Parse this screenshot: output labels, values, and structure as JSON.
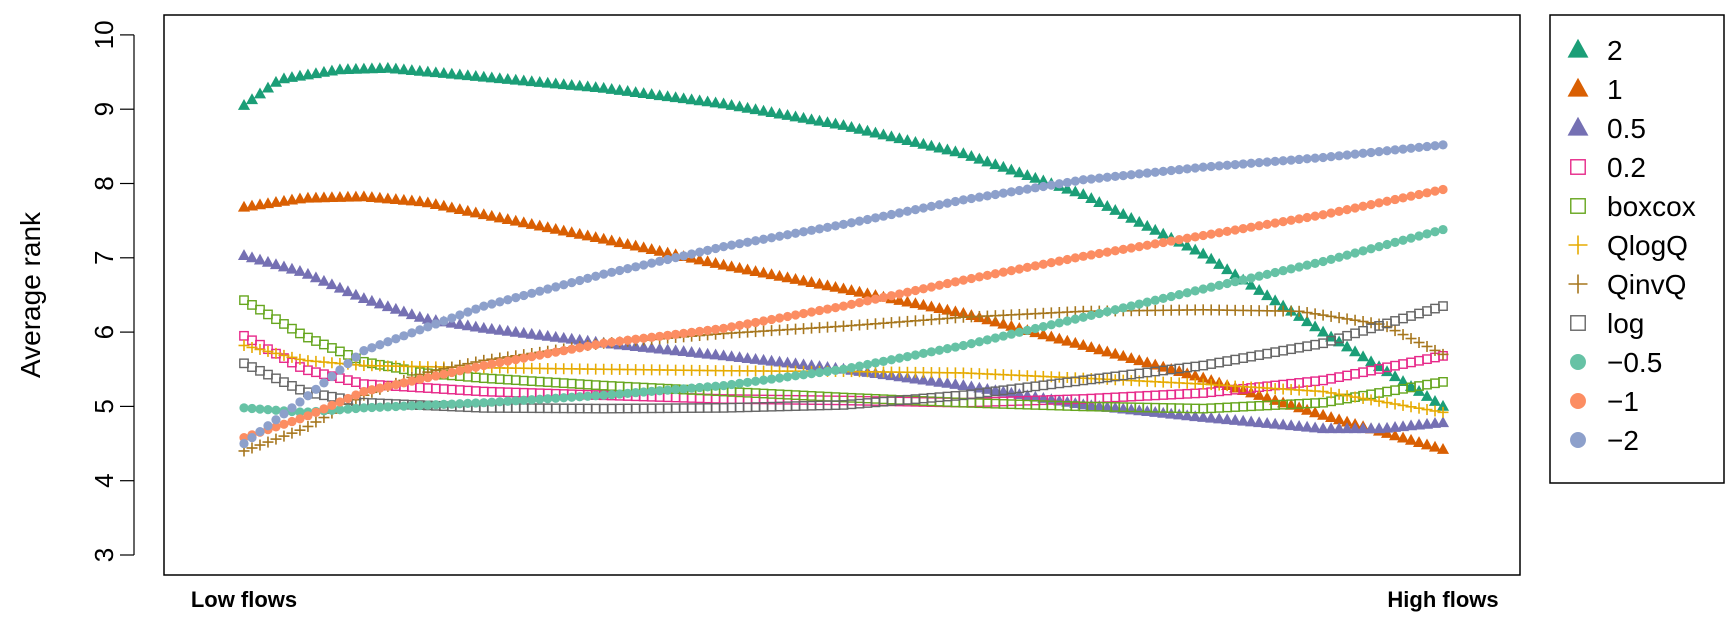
{
  "chart_data": {
    "type": "scatter",
    "ylabel": "Average rank",
    "ylim": [
      3,
      10
    ],
    "yticks": [
      3,
      4,
      5,
      6,
      7,
      8,
      9,
      10
    ],
    "x_range": [
      0,
      1
    ],
    "x_category_labels": [
      {
        "label": "Low flows",
        "x": 0.0
      },
      {
        "label": "High flows",
        "x": 1.0
      }
    ],
    "grid": false,
    "legend_position": "right",
    "series": [
      {
        "name": "2",
        "marker": "triangle-filled",
        "color": "#1b9e77",
        "points": [
          [
            0,
            9.05
          ],
          [
            0.03,
            9.4
          ],
          [
            0.08,
            9.53
          ],
          [
            0.12,
            9.55
          ],
          [
            0.2,
            9.43
          ],
          [
            0.3,
            9.28
          ],
          [
            0.4,
            9.07
          ],
          [
            0.5,
            8.78
          ],
          [
            0.6,
            8.4
          ],
          [
            0.7,
            7.85
          ],
          [
            0.8,
            7.05
          ],
          [
            0.9,
            6.0
          ],
          [
            0.95,
            5.5
          ],
          [
            1.0,
            5.0
          ]
        ]
      },
      {
        "name": "1",
        "marker": "triangle-filled",
        "color": "#d95f02",
        "points": [
          [
            0,
            7.68
          ],
          [
            0.05,
            7.8
          ],
          [
            0.1,
            7.82
          ],
          [
            0.15,
            7.75
          ],
          [
            0.2,
            7.58
          ],
          [
            0.3,
            7.25
          ],
          [
            0.4,
            6.9
          ],
          [
            0.5,
            6.58
          ],
          [
            0.6,
            6.25
          ],
          [
            0.7,
            5.82
          ],
          [
            0.8,
            5.38
          ],
          [
            0.9,
            4.88
          ],
          [
            1.0,
            4.42
          ]
        ]
      },
      {
        "name": "0.5",
        "marker": "triangle-filled",
        "color": "#7570b3",
        "points": [
          [
            0,
            7.03
          ],
          [
            0.05,
            6.8
          ],
          [
            0.1,
            6.45
          ],
          [
            0.15,
            6.18
          ],
          [
            0.2,
            6.05
          ],
          [
            0.3,
            5.85
          ],
          [
            0.4,
            5.68
          ],
          [
            0.5,
            5.5
          ],
          [
            0.6,
            5.28
          ],
          [
            0.7,
            5.02
          ],
          [
            0.8,
            4.85
          ],
          [
            0.9,
            4.7
          ],
          [
            0.95,
            4.7
          ],
          [
            1.0,
            4.78
          ]
        ]
      },
      {
        "name": "0.2",
        "marker": "square-open",
        "color": "#e7298a",
        "points": [
          [
            0,
            5.95
          ],
          [
            0.05,
            5.5
          ],
          [
            0.1,
            5.3
          ],
          [
            0.2,
            5.2
          ],
          [
            0.3,
            5.15
          ],
          [
            0.4,
            5.1
          ],
          [
            0.5,
            5.08
          ],
          [
            0.6,
            5.05
          ],
          [
            0.7,
            5.1
          ],
          [
            0.8,
            5.18
          ],
          [
            0.9,
            5.35
          ],
          [
            1.0,
            5.68
          ]
        ]
      },
      {
        "name": "boxcox",
        "marker": "square-open",
        "color": "#66a61e",
        "points": [
          [
            0,
            6.43
          ],
          [
            0.05,
            5.95
          ],
          [
            0.1,
            5.6
          ],
          [
            0.15,
            5.45
          ],
          [
            0.2,
            5.38
          ],
          [
            0.3,
            5.28
          ],
          [
            0.4,
            5.2
          ],
          [
            0.5,
            5.12
          ],
          [
            0.6,
            5.05
          ],
          [
            0.7,
            5.0
          ],
          [
            0.8,
            4.97
          ],
          [
            0.9,
            5.05
          ],
          [
            1.0,
            5.33
          ]
        ]
      },
      {
        "name": "QlogQ",
        "marker": "plus",
        "color": "#e6ab02",
        "points": [
          [
            0,
            5.82
          ],
          [
            0.05,
            5.62
          ],
          [
            0.1,
            5.55
          ],
          [
            0.2,
            5.52
          ],
          [
            0.3,
            5.5
          ],
          [
            0.4,
            5.48
          ],
          [
            0.5,
            5.47
          ],
          [
            0.6,
            5.45
          ],
          [
            0.7,
            5.38
          ],
          [
            0.8,
            5.3
          ],
          [
            0.9,
            5.2
          ],
          [
            1.0,
            4.92
          ]
        ]
      },
      {
        "name": "QinvQ",
        "marker": "plus",
        "color": "#a6761d",
        "points": [
          [
            0,
            4.4
          ],
          [
            0.05,
            4.7
          ],
          [
            0.1,
            5.15
          ],
          [
            0.15,
            5.45
          ],
          [
            0.2,
            5.62
          ],
          [
            0.3,
            5.85
          ],
          [
            0.4,
            5.98
          ],
          [
            0.5,
            6.08
          ],
          [
            0.6,
            6.2
          ],
          [
            0.7,
            6.28
          ],
          [
            0.8,
            6.3
          ],
          [
            0.88,
            6.28
          ],
          [
            0.95,
            6.1
          ],
          [
            1.0,
            5.7
          ]
        ]
      },
      {
        "name": "log",
        "marker": "square-open",
        "color": "#666666",
        "points": [
          [
            0,
            5.58
          ],
          [
            0.05,
            5.2
          ],
          [
            0.1,
            5.05
          ],
          [
            0.2,
            4.98
          ],
          [
            0.3,
            4.97
          ],
          [
            0.4,
            4.98
          ],
          [
            0.5,
            5.02
          ],
          [
            0.6,
            5.15
          ],
          [
            0.7,
            5.35
          ],
          [
            0.8,
            5.55
          ],
          [
            0.9,
            5.85
          ],
          [
            1.0,
            6.35
          ]
        ]
      },
      {
        "name": "−0.5",
        "marker": "circle-filled",
        "color": "#66c2a5",
        "points": [
          [
            0,
            4.98
          ],
          [
            0.05,
            4.92
          ],
          [
            0.1,
            4.98
          ],
          [
            0.2,
            5.05
          ],
          [
            0.3,
            5.15
          ],
          [
            0.4,
            5.28
          ],
          [
            0.5,
            5.5
          ],
          [
            0.6,
            5.82
          ],
          [
            0.7,
            6.2
          ],
          [
            0.8,
            6.58
          ],
          [
            0.9,
            6.95
          ],
          [
            1.0,
            7.38
          ]
        ]
      },
      {
        "name": "−1",
        "marker": "circle-filled",
        "color": "#fc8d62",
        "points": [
          [
            0,
            4.58
          ],
          [
            0.05,
            4.85
          ],
          [
            0.1,
            5.2
          ],
          [
            0.2,
            5.55
          ],
          [
            0.3,
            5.85
          ],
          [
            0.4,
            6.05
          ],
          [
            0.5,
            6.35
          ],
          [
            0.6,
            6.7
          ],
          [
            0.7,
            7.02
          ],
          [
            0.8,
            7.3
          ],
          [
            0.9,
            7.58
          ],
          [
            1.0,
            7.92
          ]
        ]
      },
      {
        "name": "−2",
        "marker": "circle-filled",
        "color": "#8da0cb",
        "points": [
          [
            0,
            4.5
          ],
          [
            0.05,
            5.1
          ],
          [
            0.1,
            5.75
          ],
          [
            0.2,
            6.35
          ],
          [
            0.3,
            6.78
          ],
          [
            0.4,
            7.15
          ],
          [
            0.5,
            7.45
          ],
          [
            0.6,
            7.78
          ],
          [
            0.7,
            8.05
          ],
          [
            0.8,
            8.22
          ],
          [
            0.9,
            8.35
          ],
          [
            1.0,
            8.52
          ]
        ]
      }
    ]
  }
}
